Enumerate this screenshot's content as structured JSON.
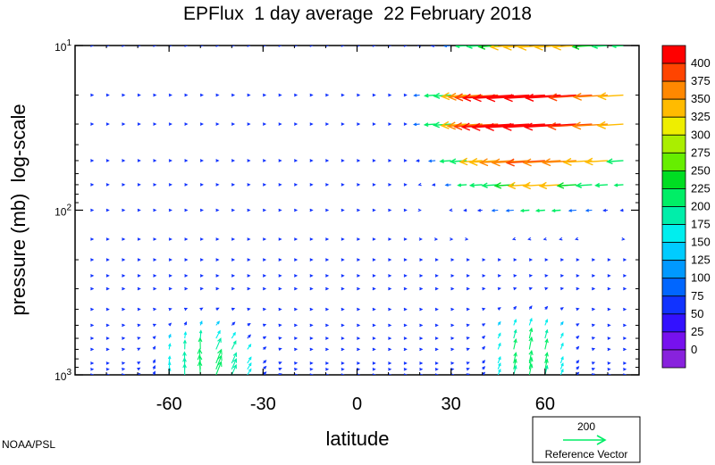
{
  "chart_data": {
    "type": "quiver",
    "title": "EPFlux  1 day average  22 February 2018",
    "xlabel": "latitude",
    "ylabel": "pressure (mb)  log-scale",
    "xlim": [
      -90,
      90
    ],
    "xticks": [
      -60,
      -30,
      0,
      30,
      60
    ],
    "xtick_labels": [
      "-60",
      "-30",
      "0",
      "30",
      "60"
    ],
    "ylim": [
      1000,
      10
    ],
    "yscale": "log",
    "y_inverted": true,
    "yticks": [
      {
        "base": "10",
        "exp": "1"
      },
      {
        "base": "10",
        "exp": "2"
      },
      {
        "base": "10",
        "exp": "3"
      }
    ],
    "colorbar": {
      "levels": [
        "400",
        "375",
        "350",
        "325",
        "300",
        "275",
        "250",
        "225",
        "200",
        "175",
        "150",
        "125",
        "100",
        "75",
        "50",
        "25",
        "0"
      ],
      "colors": [
        "#ff0000",
        "#ff4400",
        "#ff8800",
        "#ffbb00",
        "#eeee00",
        "#aaee00",
        "#66ee00",
        "#00dd22",
        "#00ee66",
        "#00eeaa",
        "#00eeee",
        "#00ccff",
        "#0099ff",
        "#0066ff",
        "#1133ff",
        "#3311ff",
        "#7711ee",
        "#8822dd"
      ]
    },
    "reference_vector": {
      "magnitude": "200",
      "label": "Reference Vector"
    },
    "credit": "NOAA/PSL",
    "latitudes": [
      -85,
      -80,
      -75,
      -70,
      -65,
      -60,
      -55,
      -50,
      -45,
      -40,
      -35,
      -30,
      -25,
      -20,
      -15,
      -10,
      -5,
      0,
      5,
      10,
      15,
      20,
      25,
      30,
      35,
      40,
      45,
      50,
      55,
      60,
      65,
      70,
      75,
      80,
      85
    ],
    "pressure_levels": [
      1000,
      925,
      850,
      700,
      600,
      500,
      400,
      300,
      250,
      200,
      150,
      100,
      70,
      50,
      30,
      20,
      10
    ],
    "notes_on_vectors": "Small blue vectors everywhere; upward cyan vectors near the surface at 60S-40S and 45N-65N; strong red/orange/green equatorward vectors in the NH stratosphere (20N-80N, 70-10 mb)."
  }
}
